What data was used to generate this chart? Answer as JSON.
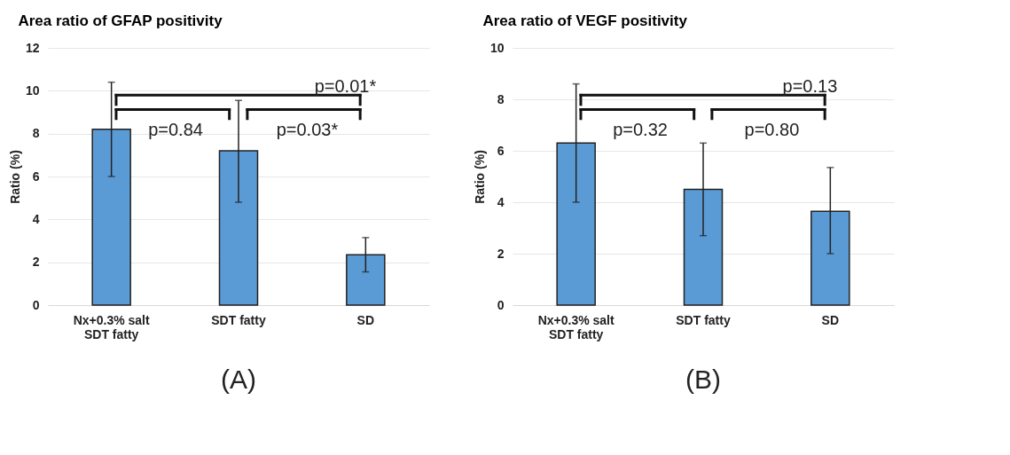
{
  "chart_data": [
    {
      "type": "bar",
      "title": "Area ratio of GFAP positivity",
      "ylabel": "Ratio (%)",
      "categories": [
        "Nx+0.3% salt\nSDT fatty",
        "SDT fatty",
        "SD"
      ],
      "values": [
        8.2,
        7.2,
        2.35
      ],
      "errors": [
        [
          6.0,
          10.4
        ],
        [
          4.8,
          9.55
        ],
        [
          1.55,
          3.15
        ]
      ],
      "color": "#5b9bd5",
      "ylim": [
        0,
        12
      ],
      "yticks": [
        0,
        2,
        4,
        6,
        8,
        10,
        12
      ],
      "grid": "y",
      "annotations": [
        "p=0.84",
        "p=0.03*",
        "p=0.01*",
        "(A)"
      ]
    },
    {
      "type": "bar",
      "title": "Area ratio of VEGF positivity",
      "ylabel": "Ratio (%)",
      "categories": [
        "Nx+0.3% salt\nSDT fatty",
        "SDT fatty",
        "SD"
      ],
      "values": [
        6.3,
        4.5,
        3.65
      ],
      "errors": [
        [
          4.0,
          8.6
        ],
        [
          2.7,
          6.3
        ],
        [
          2.0,
          5.35
        ]
      ],
      "color": "#5b9bd5",
      "ylim": [
        0,
        10
      ],
      "yticks": [
        0,
        2,
        4,
        6,
        8,
        10
      ],
      "grid": "y",
      "annotations": [
        "p=0.32",
        "p=0.80",
        "p=0.13",
        "(B)"
      ]
    }
  ]
}
